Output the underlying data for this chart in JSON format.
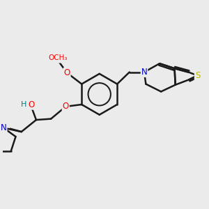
{
  "bg_color": "#ebebeb",
  "bond_color": "#1a1a1a",
  "bond_width": 1.8,
  "atom_colors": {
    "O": "#ff0000",
    "N": "#0000cc",
    "S": "#b8b800",
    "H": "#008080",
    "C": "#1a1a1a"
  },
  "font_size": 8.5,
  "fig_size": [
    3.0,
    3.0
  ],
  "dpi": 100,
  "xlim": [
    0,
    10
  ],
  "ylim": [
    0,
    10
  ]
}
